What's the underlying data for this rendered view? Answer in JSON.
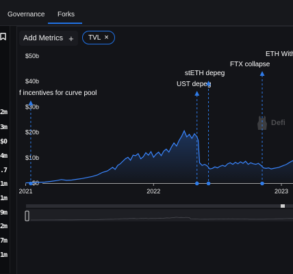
{
  "tabs": [
    {
      "label": "Governance"
    },
    {
      "label": "Forks"
    }
  ],
  "sidebar": {
    "values": [
      "2m",
      "3m",
      "$0",
      "4m",
      ".7",
      "1m",
      "1m",
      "9m",
      "2m",
      "7m",
      "1m"
    ]
  },
  "toolbar": {
    "add_metrics_label": "Add Metrics",
    "add_icon": "+",
    "chip_label": "TVL",
    "chip_close": "×"
  },
  "watermark": {
    "text": "Defi",
    "icon": "llama-logo-icon"
  },
  "colors": {
    "accent": "#2172e5",
    "background": "#131418",
    "line": "#3a86ff"
  },
  "chart_data": {
    "type": "area",
    "title": "",
    "xlabel": "",
    "ylabel": "",
    "y_ticks": [
      "$0",
      "$10b",
      "$20b",
      "$30b",
      "$40b",
      "$50b"
    ],
    "ylim": [
      0,
      50
    ],
    "y_unit": "billions USD",
    "x_ticks": [
      {
        "label": "2021",
        "x": 2021.0
      },
      {
        "label": "2022",
        "x": 2022.0
      },
      {
        "label": "2023",
        "x": 2023.0
      }
    ],
    "xlim": [
      2020.96,
      2023.23
    ],
    "grid": false,
    "series": [
      {
        "values": [
          [
            2021.0,
            0.1
          ],
          [
            2021.05,
            0.2
          ],
          [
            2021.1,
            0.3
          ],
          [
            2021.15,
            0.4
          ],
          [
            2021.2,
            0.7
          ],
          [
            2021.24,
            1.0
          ],
          [
            2021.28,
            1.4
          ],
          [
            2021.32,
            1.1
          ],
          [
            2021.36,
            1.2
          ],
          [
            2021.4,
            1.5
          ],
          [
            2021.44,
            1.8
          ],
          [
            2021.48,
            2.2
          ],
          [
            2021.52,
            2.6
          ],
          [
            2021.56,
            3.2
          ],
          [
            2021.6,
            4.2
          ],
          [
            2021.64,
            4.8
          ],
          [
            2021.68,
            6.2
          ],
          [
            2021.7,
            5.4
          ],
          [
            2021.72,
            7.0
          ],
          [
            2021.74,
            7.6
          ],
          [
            2021.76,
            8.6
          ],
          [
            2021.78,
            9.6
          ],
          [
            2021.8,
            10.2
          ],
          [
            2021.82,
            9.0
          ],
          [
            2021.84,
            11.0
          ],
          [
            2021.86,
            10.8
          ],
          [
            2021.88,
            11.6
          ],
          [
            2021.9,
            9.6
          ],
          [
            2021.92,
            10.4
          ],
          [
            2021.94,
            12.0
          ],
          [
            2021.96,
            11.0
          ],
          [
            2021.98,
            12.4
          ],
          [
            2022.0,
            10.2
          ],
          [
            2022.02,
            11.4
          ],
          [
            2022.04,
            12.2
          ],
          [
            2022.06,
            10.8
          ],
          [
            2022.08,
            12.6
          ],
          [
            2022.1,
            13.4
          ],
          [
            2022.12,
            12.2
          ],
          [
            2022.14,
            14.2
          ],
          [
            2022.16,
            15.8
          ],
          [
            2022.18,
            14.6
          ],
          [
            2022.2,
            16.8
          ],
          [
            2022.22,
            18.4
          ],
          [
            2022.24,
            20.6
          ],
          [
            2022.26,
            18.2
          ],
          [
            2022.28,
            19.2
          ],
          [
            2022.3,
            17.6
          ],
          [
            2022.32,
            19.4
          ],
          [
            2022.34,
            18.2
          ],
          [
            2022.35,
            16.8
          ],
          [
            2022.36,
            8.0
          ],
          [
            2022.38,
            7.0
          ],
          [
            2022.4,
            7.4
          ],
          [
            2022.42,
            6.8
          ],
          [
            2022.44,
            5.6
          ],
          [
            2022.46,
            5.8
          ],
          [
            2022.48,
            6.4
          ],
          [
            2022.5,
            6.0
          ],
          [
            2022.52,
            6.6
          ],
          [
            2022.54,
            7.0
          ],
          [
            2022.56,
            6.6
          ],
          [
            2022.58,
            7.6
          ],
          [
            2022.6,
            8.0
          ],
          [
            2022.62,
            7.4
          ],
          [
            2022.64,
            8.2
          ],
          [
            2022.66,
            7.6
          ],
          [
            2022.68,
            8.4
          ],
          [
            2022.7,
            7.8
          ],
          [
            2022.72,
            8.6
          ],
          [
            2022.74,
            7.4
          ],
          [
            2022.76,
            8.0
          ],
          [
            2022.78,
            7.6
          ],
          [
            2022.8,
            7.4
          ],
          [
            2022.82,
            7.8
          ],
          [
            2022.84,
            7.0
          ],
          [
            2022.86,
            6.0
          ],
          [
            2022.88,
            5.8
          ],
          [
            2022.9,
            6.0
          ],
          [
            2022.92,
            5.6
          ],
          [
            2022.94,
            5.8
          ],
          [
            2022.96,
            6.0
          ],
          [
            2022.98,
            6.2
          ],
          [
            2023.0,
            6.6
          ],
          [
            2023.02,
            7.0
          ],
          [
            2023.04,
            7.4
          ],
          [
            2023.06,
            8.0
          ],
          [
            2023.08,
            8.6
          ],
          [
            2023.1,
            9.0
          ],
          [
            2023.12,
            9.6
          ],
          [
            2023.14,
            9.2
          ],
          [
            2023.16,
            10.0
          ],
          [
            2023.18,
            10.4
          ],
          [
            2023.2,
            10.8
          ],
          [
            2023.23,
            11.0
          ]
        ]
      }
    ],
    "annotations": [
      {
        "label": "f incentives for curve pool",
        "x": 2021.04
      },
      {
        "label": "UST depeg",
        "x": 2022.34
      },
      {
        "label": "stETH depeg",
        "x": 2022.43
      },
      {
        "label": "FTX collapse",
        "x": 2022.85
      },
      {
        "label": "ETH With",
        "x": 2023.2
      }
    ]
  }
}
